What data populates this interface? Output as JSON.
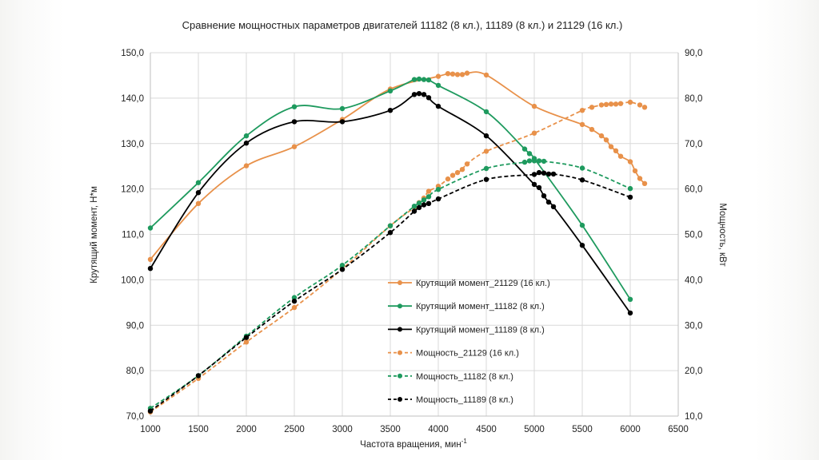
{
  "chart_data": {
    "type": "line",
    "title": "Сравнение мощностных параметров двигателей 11182 (8 кл.), 11189 (8 кл.) и 21129 (16 кл.)",
    "xlabel": "Частота вращения, мин",
    "xlabel_sup": "-1",
    "ylabel_left": "Крутящий момент, Н*м",
    "ylabel_right": "Мощность, кВт",
    "xlim": [
      1000,
      6500
    ],
    "ylim_left": [
      70,
      150
    ],
    "ylim_right": [
      10,
      90
    ],
    "x_ticks": [
      "1000",
      "1500",
      "2000",
      "2500",
      "3000",
      "3500",
      "4000",
      "4500",
      "5000",
      "5500",
      "6000",
      "6500"
    ],
    "y_ticks_left": [
      "70,0",
      "80,0",
      "90,0",
      "100,0",
      "110,0",
      "120,0",
      "130,0",
      "140,0",
      "150,0"
    ],
    "y_ticks_right": [
      "10,0",
      "20,0",
      "30,0",
      "40,0",
      "50,0",
      "60,0",
      "70,0",
      "80,0",
      "90,0"
    ],
    "legend_position": "center",
    "series": [
      {
        "name": "Крутящий момент_21129 (16 кл.)",
        "color": "#e8914a",
        "axis": "left",
        "dashed": false,
        "x": [
          1000,
          1500,
          2000,
          2500,
          3000,
          3500,
          4000,
          4100,
          4150,
          4200,
          4250,
          4300,
          4500,
          5000,
          5500,
          5600,
          5700,
          5750,
          5800,
          5850,
          5900,
          6000,
          6050,
          6100,
          6150
        ],
        "y": [
          104.5,
          116.8,
          125.1,
          129.3,
          135.3,
          142.0,
          144.8,
          145.4,
          145.3,
          145.2,
          145.2,
          145.5,
          145.1,
          138.2,
          134.2,
          133.1,
          131.7,
          130.8,
          129.3,
          128.4,
          127.2,
          126.0,
          124.0,
          122.3,
          121.2
        ]
      },
      {
        "name": "Крутящий момент_11182 (8 кл.)",
        "color": "#1e9a5e",
        "axis": "left",
        "dashed": false,
        "x": [
          1000,
          1500,
          2000,
          2500,
          3000,
          3500,
          3750,
          3800,
          3850,
          3900,
          4000,
          4500,
          4900,
          4950,
          5000,
          5500,
          6000
        ],
        "y": [
          111.4,
          121.4,
          131.7,
          138.1,
          137.7,
          141.6,
          144.1,
          144.2,
          144.1,
          144.0,
          142.8,
          137.0,
          128.8,
          127.8,
          126.7,
          112.0,
          95.7
        ]
      },
      {
        "name": "Крутящий момент_11189 (8 кл.)",
        "color": "#000000",
        "axis": "left",
        "dashed": false,
        "x": [
          1000,
          1500,
          2000,
          2500,
          3000,
          3500,
          3750,
          3800,
          3850,
          3900,
          4000,
          4500,
          5000,
          5050,
          5100,
          5150,
          5200,
          5500,
          6000
        ],
        "y": [
          102.5,
          119.2,
          130.1,
          134.8,
          134.8,
          137.3,
          140.8,
          141.0,
          140.8,
          140.1,
          138.2,
          131.7,
          121.0,
          120.3,
          118.5,
          117.1,
          116.1,
          107.6,
          92.7
        ]
      },
      {
        "name": "Мощность_21129 (16 кл.)",
        "color": "#e8914a",
        "axis": "right",
        "dashed": true,
        "x": [
          1000,
          1500,
          2000,
          2500,
          3000,
          3500,
          3750,
          3800,
          3850,
          3900,
          4000,
          4100,
          4150,
          4200,
          4250,
          4300,
          4500,
          5000,
          5500,
          5600,
          5700,
          5750,
          5800,
          5850,
          5900,
          6000,
          6100,
          6150
        ],
        "y": [
          10.9,
          18.3,
          26.3,
          33.9,
          42.4,
          51.9,
          55.9,
          57.0,
          58.0,
          59.5,
          60.6,
          62.2,
          63.0,
          63.6,
          64.3,
          65.5,
          68.3,
          72.3,
          77.3,
          78.0,
          78.5,
          78.6,
          78.7,
          78.7,
          78.8,
          79.1,
          78.5,
          78.0
        ]
      },
      {
        "name": "Мощность_11182 (8 кл.)",
        "color": "#1e9a5e",
        "axis": "right",
        "dashed": true,
        "x": [
          1000,
          1500,
          2000,
          2500,
          3000,
          3500,
          3750,
          3800,
          3850,
          3900,
          4000,
          4500,
          4900,
          4950,
          5000,
          5050,
          5100,
          5500,
          6000
        ],
        "y": [
          11.7,
          18.9,
          27.6,
          36.1,
          43.2,
          51.9,
          56.2,
          56.9,
          57.6,
          58.3,
          59.9,
          64.5,
          65.9,
          66.2,
          66.2,
          66.2,
          66.1,
          64.6,
          60.1
        ]
      },
      {
        "name": "Мощность_11189 (8 кл.)",
        "color": "#000000",
        "axis": "right",
        "dashed": true,
        "x": [
          1000,
          1500,
          2000,
          2500,
          3000,
          3500,
          3750,
          3800,
          3850,
          3900,
          4000,
          4500,
          5000,
          5050,
          5100,
          5150,
          5200,
          5500,
          6000
        ],
        "y": [
          11.1,
          18.9,
          27.3,
          35.3,
          42.3,
          50.4,
          55.1,
          55.9,
          56.5,
          56.8,
          57.8,
          62.1,
          63.2,
          63.6,
          63.5,
          63.3,
          63.3,
          62.0,
          58.2
        ]
      }
    ]
  }
}
